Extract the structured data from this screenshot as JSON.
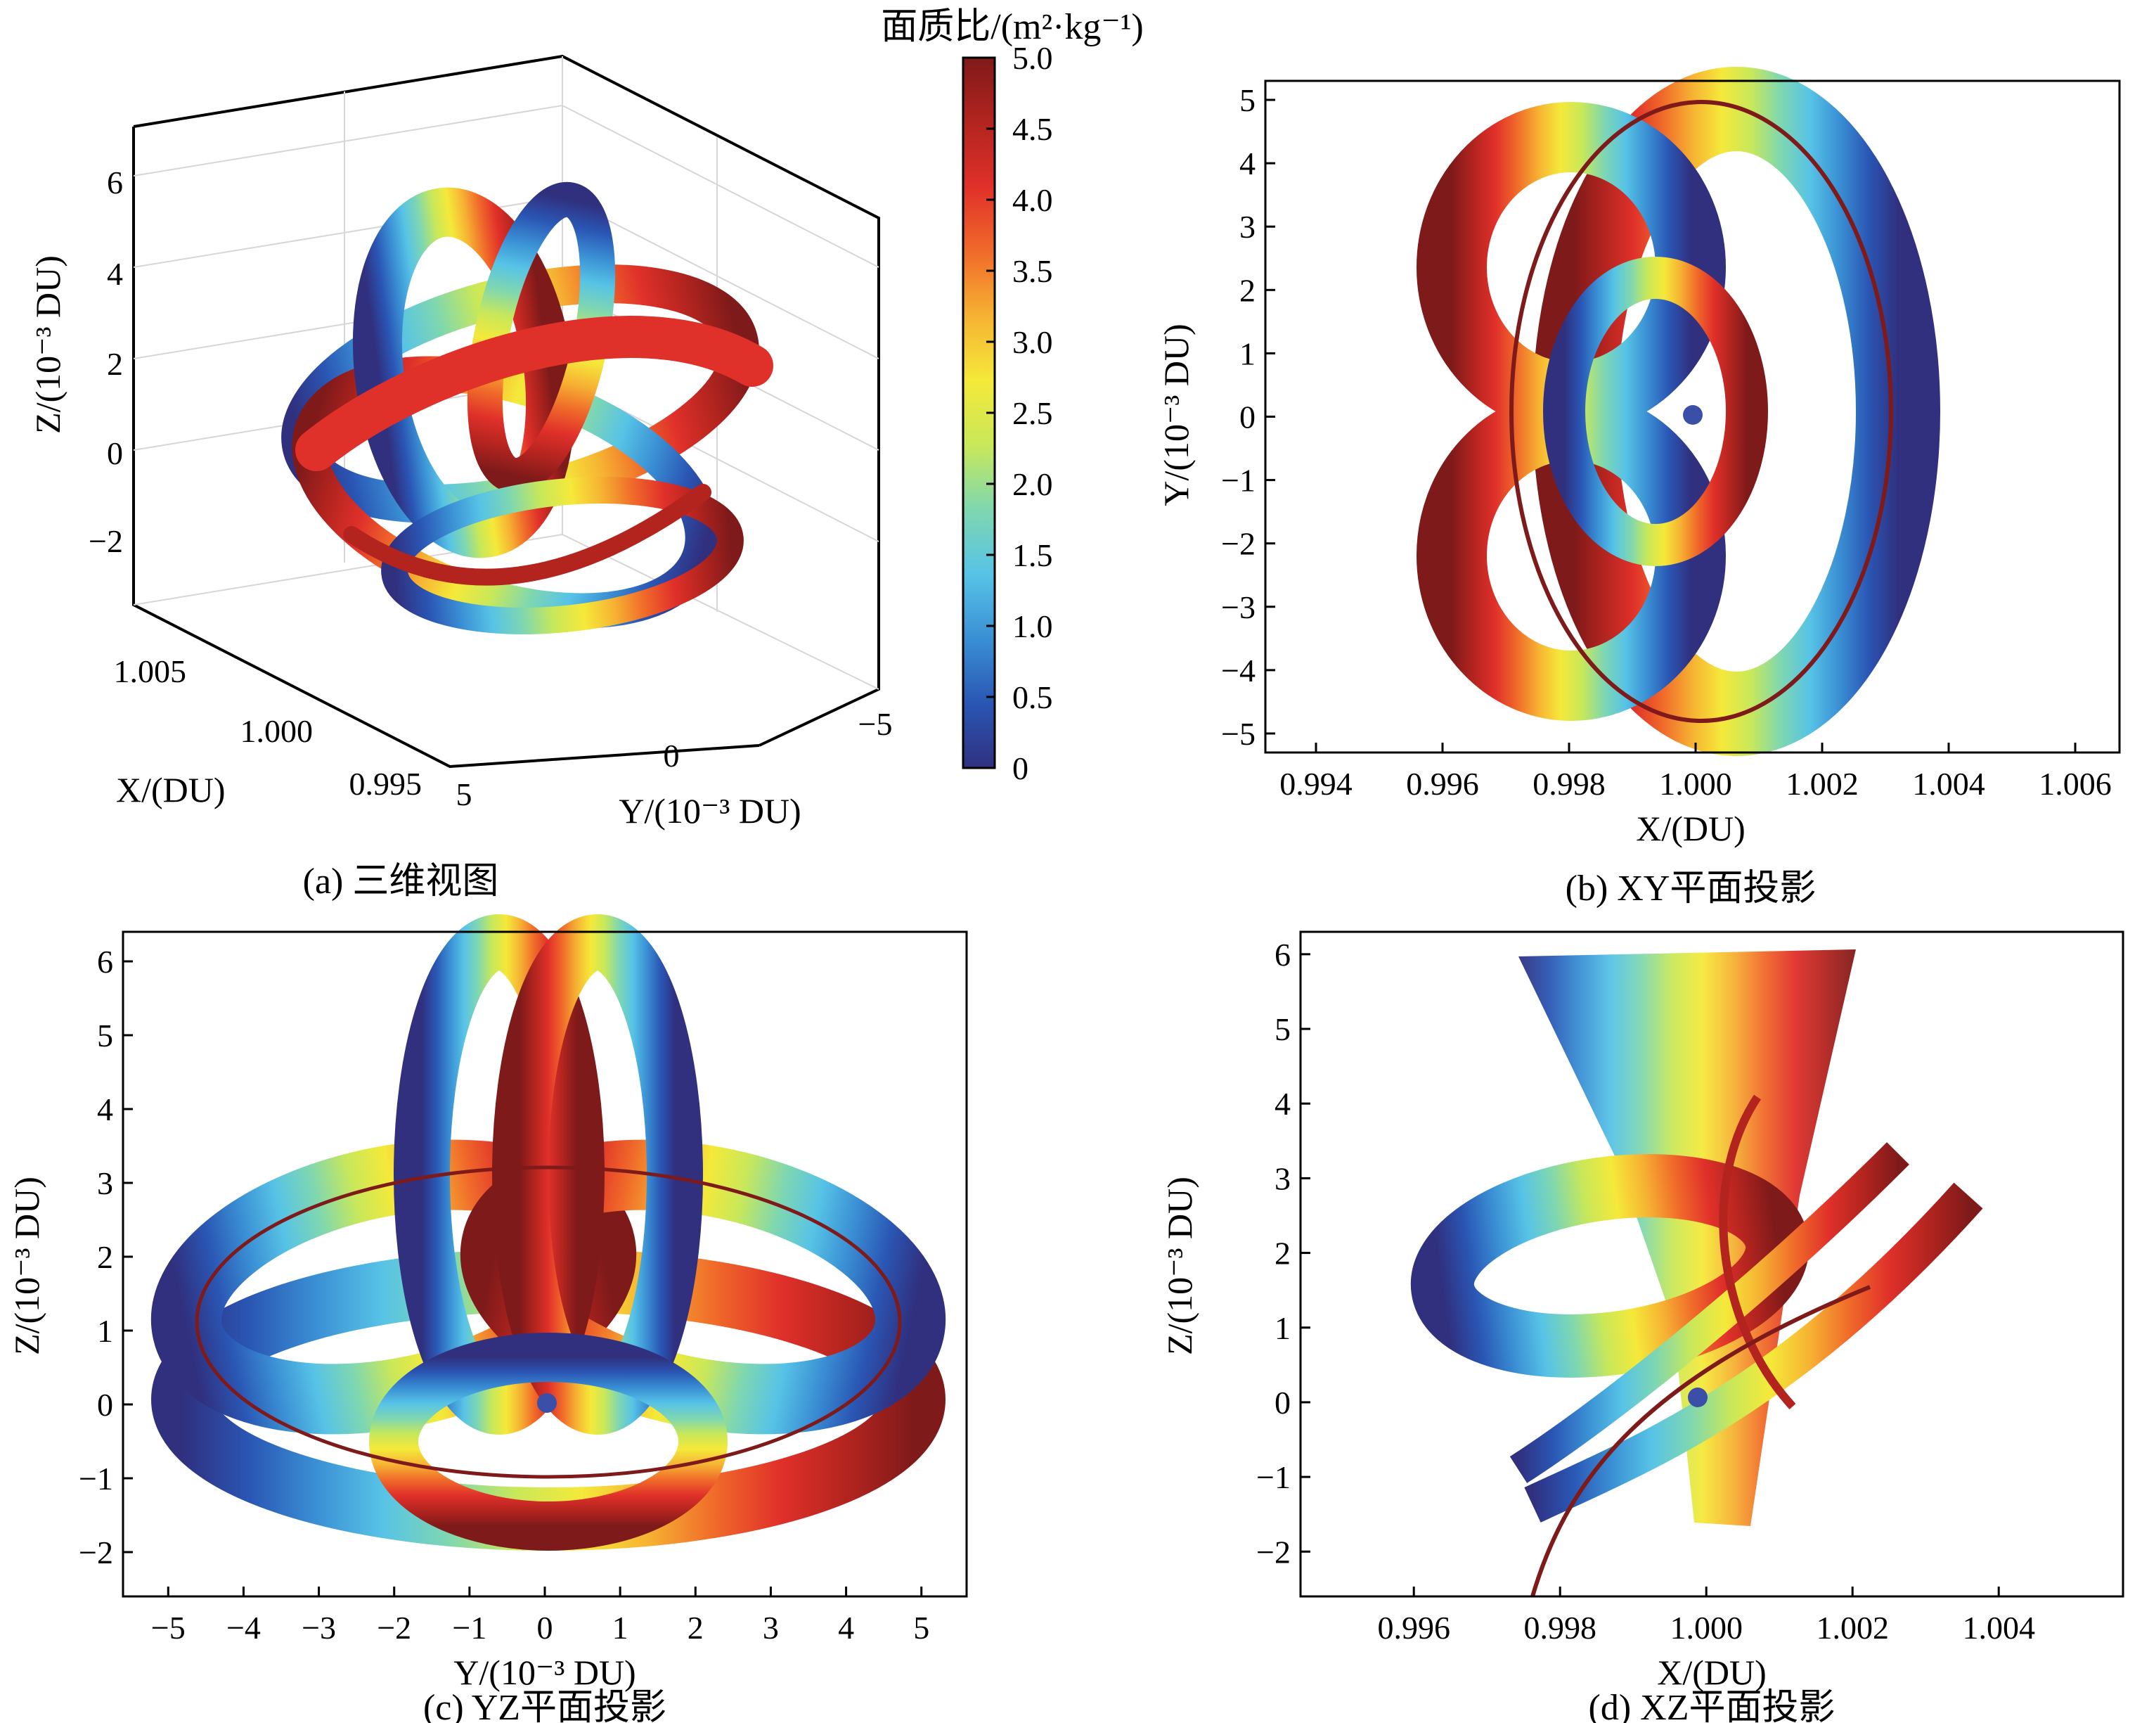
{
  "colorbar": {
    "title": "面质比/(m²·kg⁻¹)",
    "ticks": [
      "0",
      "0.5",
      "1.0",
      "1.5",
      "2.0",
      "2.5",
      "3.0",
      "3.5",
      "4.0",
      "4.5",
      "5.0"
    ],
    "range": [
      0,
      5.0
    ]
  },
  "colors": {
    "jet": [
      "#30307f",
      "#2a56b4",
      "#3a8fd4",
      "#57c3e6",
      "#7fd7b0",
      "#c8e85a",
      "#f5e93a",
      "#f6b233",
      "#f06a2a",
      "#e0302a",
      "#b3241f",
      "#7f1a1a"
    ],
    "point": "#3b4ea8"
  },
  "panels": {
    "a": {
      "caption": "(a) 三维视图",
      "zlabel": "Z/(10⁻³ DU)",
      "xlabel": "X/(DU)",
      "ylabel": "Y/(10⁻³ DU)",
      "zticks": [
        "6",
        "4",
        "2",
        "0",
        "−2"
      ],
      "xticks": [
        "1.005",
        "1.000",
        "0.995"
      ],
      "yticks": [
        "5",
        "0",
        "−5"
      ]
    },
    "b": {
      "caption": "(b) XY平面投影",
      "xlabel": "X/(DU)",
      "ylabel": "Y/(10⁻³ DU)",
      "xticks": [
        "0.994",
        "0.996",
        "0.998",
        "1.000",
        "1.002",
        "1.004",
        "1.006"
      ],
      "yticks": [
        "5",
        "4",
        "3",
        "2",
        "1",
        "0",
        "−1",
        "−2",
        "−3",
        "−4",
        "−5"
      ]
    },
    "c": {
      "caption": "(c) YZ平面投影",
      "xlabel": "Y/(10⁻³ DU)",
      "ylabel": "Z/(10⁻³ DU)",
      "xticks": [
        "−5",
        "−4",
        "−3",
        "−2",
        "−1",
        "0",
        "1",
        "2",
        "3",
        "4",
        "5"
      ],
      "yticks": [
        "6",
        "5",
        "4",
        "3",
        "2",
        "1",
        "0",
        "−1",
        "−2"
      ]
    },
    "d": {
      "caption": "(d) XZ平面投影",
      "xlabel": "X/(DU)",
      "ylabel": "Z/(10⁻³ DU)",
      "xticks": [
        "0.996",
        "0.998",
        "1.000",
        "1.002",
        "1.004"
      ],
      "yticks": [
        "6",
        "5",
        "4",
        "3",
        "2",
        "1",
        "0",
        "−1",
        "−2"
      ]
    }
  },
  "chart_data": [
    {
      "type": "line",
      "panel": "a",
      "projection": "3d",
      "xlabel": "X/(DU)",
      "ylabel": "Y/(10⁻³ DU)",
      "zlabel": "Z/(10⁻³ DU)",
      "colorbar_label": "面质比/(m²·kg⁻¹)",
      "colorbar_range": [
        0,
        5.0
      ]
    },
    {
      "type": "line",
      "panel": "b",
      "xlabel": "X/(DU)",
      "ylabel": "Y/(10⁻³ DU)",
      "xlim": [
        0.9932,
        1.0067
      ],
      "ylim": [
        -5.3,
        5.3
      ],
      "marker_point": [
        1.0,
        0.0
      ]
    },
    {
      "type": "line",
      "panel": "c",
      "xlabel": "Y/(10⁻³ DU)",
      "ylabel": "Z/(10⁻³ DU)",
      "xlim": [
        -5.6,
        5.6
      ],
      "ylim": [
        -2.6,
        6.4
      ],
      "marker_point": [
        0.0,
        0.0
      ]
    },
    {
      "type": "line",
      "panel": "d",
      "xlabel": "X/(DU)",
      "ylabel": "Z/(10⁻³ DU)",
      "xlim": [
        0.99445,
        1.0057
      ],
      "ylim": [
        -2.6,
        6.3
      ],
      "marker_point": [
        1.0,
        0.0
      ]
    }
  ]
}
